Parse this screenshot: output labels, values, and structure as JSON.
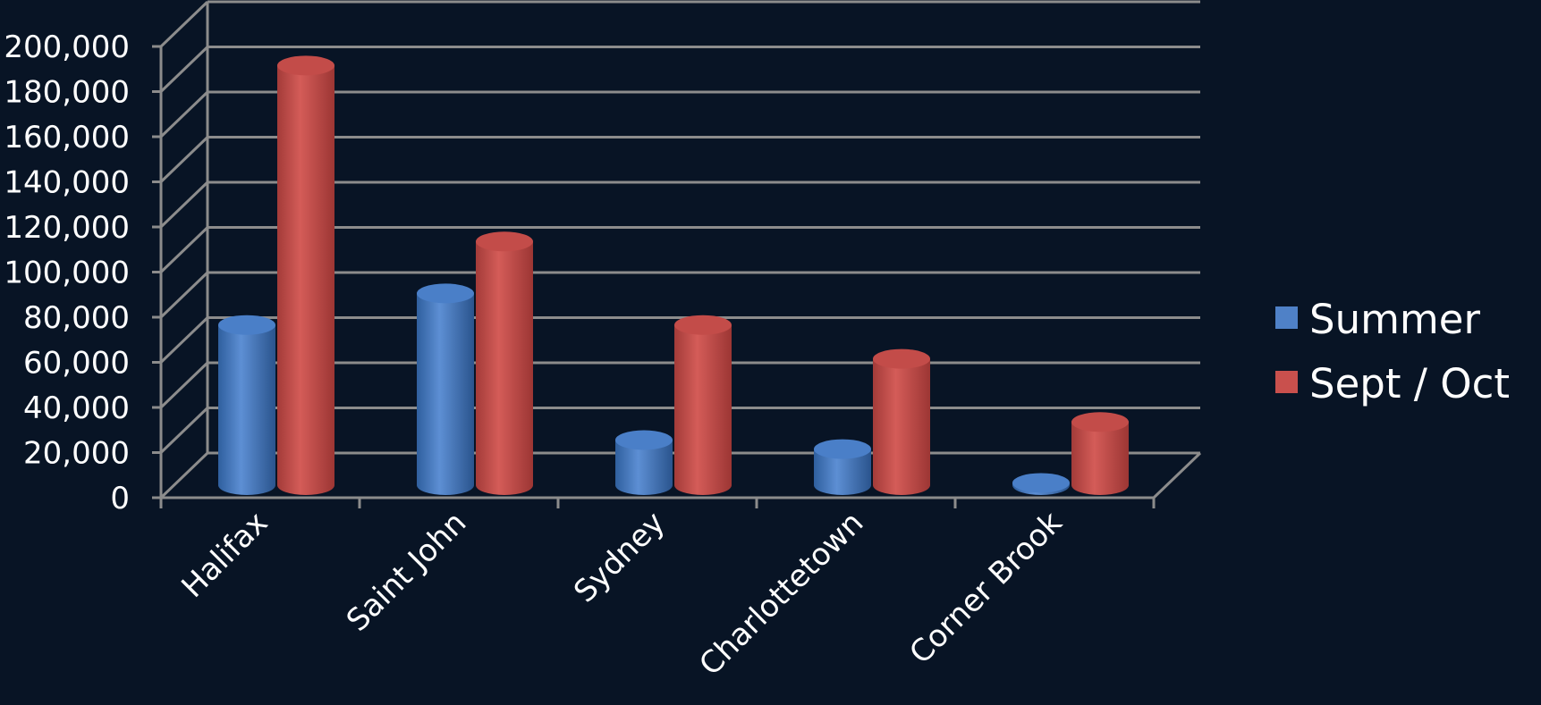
{
  "chart_data": {
    "type": "bar",
    "categories": [
      "Halifax",
      "Saint John",
      "Sydney",
      "Charlottetown",
      "Corner Brook"
    ],
    "series": [
      {
        "name": "Summer",
        "values": [
          71000,
          85000,
          20000,
          16000,
          1000
        ]
      },
      {
        "name": "Sept / Oct",
        "values": [
          186000,
          108000,
          71000,
          56000,
          28000
        ]
      }
    ],
    "ylim": [
      0,
      200000
    ],
    "yticks": [
      "0",
      "20,000",
      "40,000",
      "60,000",
      "80,000",
      "100,000",
      "120,000",
      "140,000",
      "160,000",
      "180,000",
      "200,000"
    ],
    "grid": true,
    "legend": "right",
    "colors": {
      "series": [
        "#4f81c7",
        "#c9504d"
      ],
      "background": "#081425",
      "grid": "#8c8c8c"
    }
  }
}
